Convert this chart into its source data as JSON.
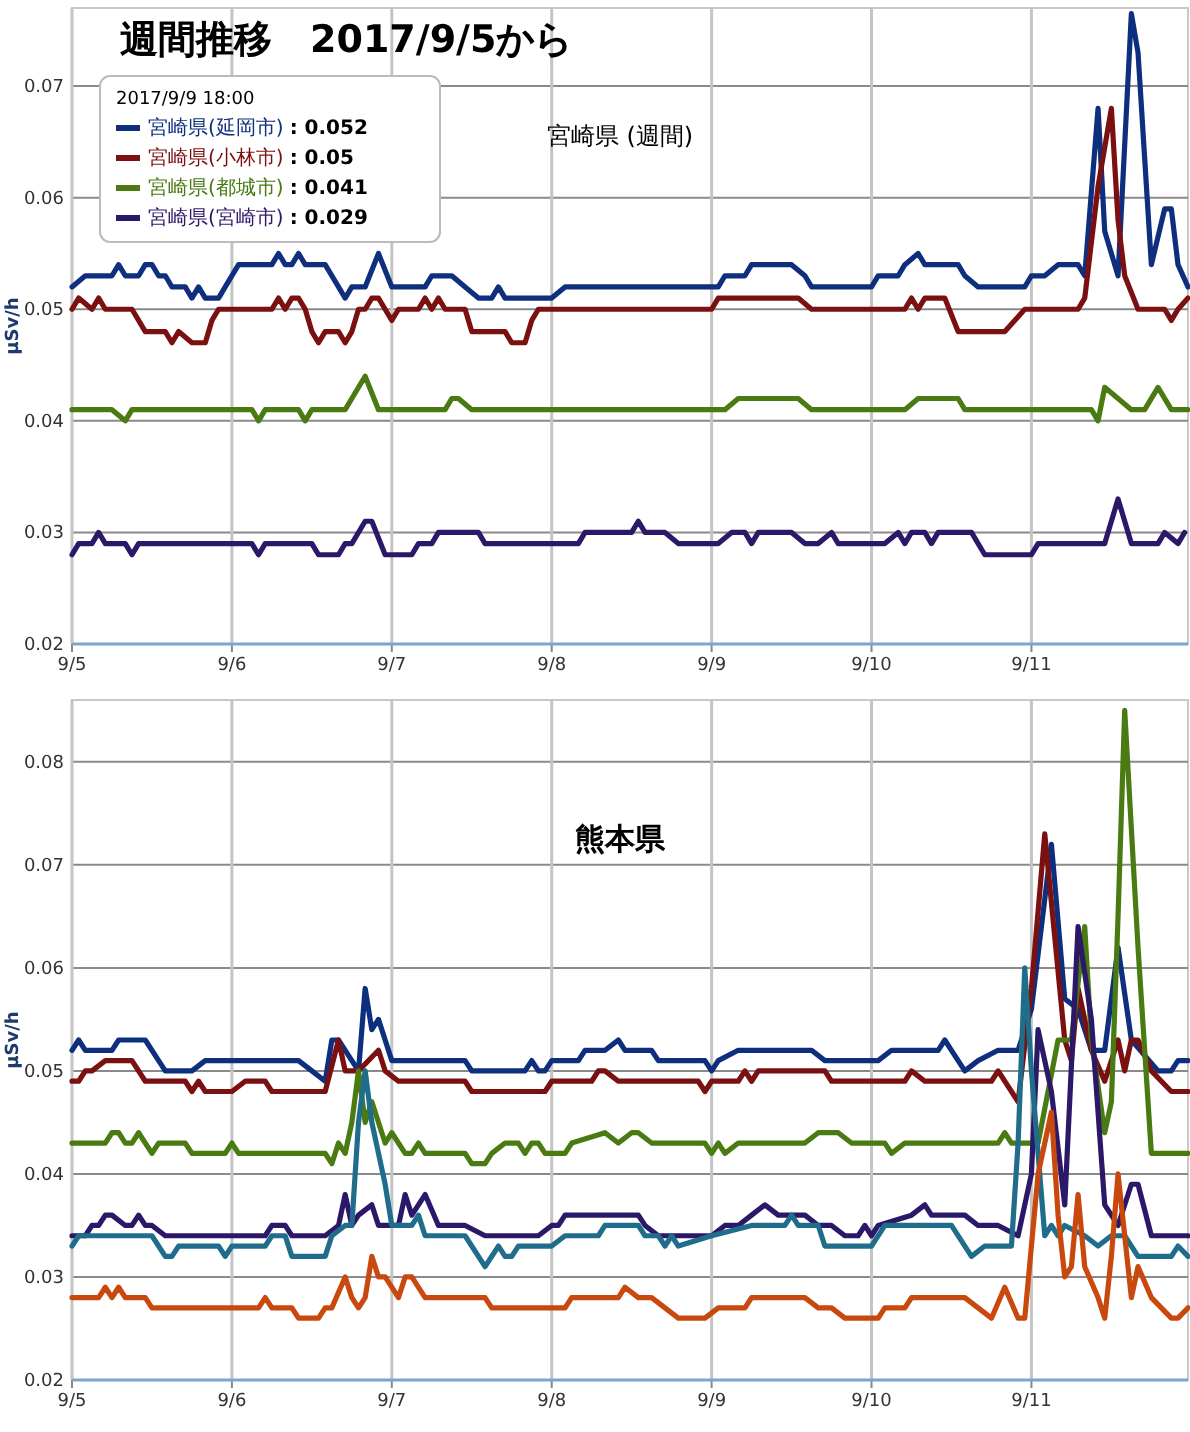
{
  "chart_data": [
    {
      "type": "line",
      "title": "週間推移　2017/9/5から",
      "subtitle": "宮崎県 (週間)",
      "ylabel": "μSv/h",
      "annotations": [
        "2017/9/9 18:00",
        ": 0.052",
        ": 0.05",
        ": 0.041",
        ": 0.029"
      ],
      "xlim": [
        "2017-09-05T00:00",
        "2017-09-11T23:30"
      ],
      "ylim": [
        0.02,
        0.077
      ],
      "xticks": [
        {
          "value": "2017-09-05",
          "label": "9/5"
        },
        {
          "value": "2017-09-06",
          "label": "9/6"
        },
        {
          "value": "2017-09-07",
          "label": "9/7"
        },
        {
          "value": "2017-09-08",
          "label": "9/8"
        },
        {
          "value": "2017-09-09",
          "label": "9/9"
        },
        {
          "value": "2017-09-10",
          "label": "9/10"
        },
        {
          "value": "2017-09-11",
          "label": "9/11"
        }
      ],
      "yticks": [
        0.02,
        0.03,
        0.04,
        0.05,
        0.06,
        0.07
      ],
      "grid": true,
      "legend": "top left",
      "series": [
        {
          "name": "宮崎県(延岡市)",
          "color": "#0e2f7e",
          "x": [
            "2017-09-05T00:00",
            "2017-09-05T02:00",
            "2017-09-05T06:00",
            "2017-09-05T07:00",
            "2017-09-05T08:00",
            "2017-09-05T10:00",
            "2017-09-05T11:00",
            "2017-09-05T12:00",
            "2017-09-05T13:00",
            "2017-09-05T14:00",
            "2017-09-05T15:00",
            "2017-09-05T17:00",
            "2017-09-05T18:00",
            "2017-09-05T19:00",
            "2017-09-05T20:00",
            "2017-09-05T22:00",
            "2017-09-05T23:00",
            "2017-09-06T01:00",
            "2017-09-06T06:00",
            "2017-09-06T07:00",
            "2017-09-06T08:00",
            "2017-09-06T09:00",
            "2017-09-06T10:00",
            "2017-09-06T11:00",
            "2017-09-06T14:00",
            "2017-09-06T16:00",
            "2017-09-06T17:00",
            "2017-09-06T18:00",
            "2017-09-06T20:00",
            "2017-09-06T22:00",
            "2017-09-07T00:00",
            "2017-09-07T05:00",
            "2017-09-07T06:00",
            "2017-09-07T09:00",
            "2017-09-07T11:00",
            "2017-09-07T13:00",
            "2017-09-07T15:00",
            "2017-09-07T16:00",
            "2017-09-07T17:00",
            "2017-09-08T00:00",
            "2017-09-08T02:00",
            "2017-09-09T01:00",
            "2017-09-09T02:00",
            "2017-09-09T05:00",
            "2017-09-09T06:00",
            "2017-09-09T12:00",
            "2017-09-09T14:00",
            "2017-09-09T15:00",
            "2017-09-10T00:00",
            "2017-09-10T01:00",
            "2017-09-10T04:00",
            "2017-09-10T05:00",
            "2017-09-10T07:00",
            "2017-09-10T08:00",
            "2017-09-10T13:00",
            "2017-09-10T14:00",
            "2017-09-10T16:00",
            "2017-09-10T23:00",
            "2017-09-11T00:00",
            "2017-09-11T02:00",
            "2017-09-11T04:00",
            "2017-09-11T07:00",
            "2017-09-11T08:00",
            "2017-09-11T10:00",
            "2017-09-11T11:00",
            "2017-09-11T13:00",
            "2017-09-11T15:00",
            "2017-09-11T16:00",
            "2017-09-11T18:00",
            "2017-09-11T20:00",
            "2017-09-11T21:00",
            "2017-09-11T22:00",
            "2017-09-11T23:30"
          ],
          "values": [
            0.052,
            0.053,
            0.053,
            0.054,
            0.053,
            0.053,
            0.054,
            0.054,
            0.053,
            0.053,
            0.052,
            0.052,
            0.051,
            0.052,
            0.051,
            0.051,
            0.052,
            0.054,
            0.054,
            0.055,
            0.054,
            0.054,
            0.055,
            0.054,
            0.054,
            0.052,
            0.051,
            0.052,
            0.052,
            0.055,
            0.052,
            0.052,
            0.053,
            0.053,
            0.052,
            0.051,
            0.051,
            0.052,
            0.051,
            0.051,
            0.052,
            0.052,
            0.053,
            0.053,
            0.054,
            0.054,
            0.053,
            0.052,
            0.052,
            0.053,
            0.053,
            0.054,
            0.055,
            0.054,
            0.054,
            0.053,
            0.052,
            0.052,
            0.053,
            0.053,
            0.054,
            0.054,
            0.053,
            0.068,
            0.057,
            0.053,
            0.0765,
            0.073,
            0.054,
            0.059,
            0.059,
            0.054,
            0.052
          ]
        },
        {
          "name": "宮崎県(小林市)",
          "color": "#7a1010",
          "x": [
            "2017-09-05T00:00",
            "2017-09-05T01:00",
            "2017-09-05T03:00",
            "2017-09-05T04:00",
            "2017-09-05T05:00",
            "2017-09-05T09:00",
            "2017-09-05T10:00",
            "2017-09-05T11:00",
            "2017-09-05T14:00",
            "2017-09-05T15:00",
            "2017-09-05T16:00",
            "2017-09-05T18:00",
            "2017-09-05T20:00",
            "2017-09-05T21:00",
            "2017-09-05T22:00",
            "2017-09-06T06:00",
            "2017-09-06T07:00",
            "2017-09-06T08:00",
            "2017-09-06T09:00",
            "2017-09-06T10:00",
            "2017-09-06T11:00",
            "2017-09-06T12:00",
            "2017-09-06T13:00",
            "2017-09-06T14:00",
            "2017-09-06T16:00",
            "2017-09-06T17:00",
            "2017-09-06T18:00",
            "2017-09-06T19:00",
            "2017-09-06T20:00",
            "2017-09-06T21:00",
            "2017-09-06T22:00",
            "2017-09-06T23:00",
            "2017-09-07T00:00",
            "2017-09-07T01:00",
            "2017-09-07T04:00",
            "2017-09-07T05:00",
            "2017-09-07T06:00",
            "2017-09-07T07:00",
            "2017-09-07T08:00",
            "2017-09-07T11:00",
            "2017-09-07T12:00",
            "2017-09-07T17:00",
            "2017-09-07T18:00",
            "2017-09-07T20:00",
            "2017-09-07T21:00",
            "2017-09-07T22:00",
            "2017-09-09T00:00",
            "2017-09-09T01:00",
            "2017-09-09T13:00",
            "2017-09-09T15:00",
            "2017-09-10T05:00",
            "2017-09-10T06:00",
            "2017-09-10T07:00",
            "2017-09-10T08:00",
            "2017-09-10T11:00",
            "2017-09-10T13:00",
            "2017-09-10T20:00",
            "2017-09-10T23:00",
            "2017-09-11T07:00",
            "2017-09-11T08:00",
            "2017-09-11T10:00",
            "2017-09-11T12:00",
            "2017-09-11T13:00",
            "2017-09-11T14:00",
            "2017-09-11T16:00",
            "2017-09-11T20:00",
            "2017-09-11T21:00",
            "2017-09-11T22:00",
            "2017-09-11T23:30"
          ],
          "values": [
            0.05,
            0.051,
            0.05,
            0.051,
            0.05,
            0.05,
            0.049,
            0.048,
            0.048,
            0.047,
            0.048,
            0.047,
            0.047,
            0.049,
            0.05,
            0.05,
            0.051,
            0.05,
            0.051,
            0.051,
            0.05,
            0.048,
            0.047,
            0.048,
            0.048,
            0.047,
            0.048,
            0.05,
            0.05,
            0.051,
            0.051,
            0.05,
            0.049,
            0.05,
            0.05,
            0.051,
            0.05,
            0.051,
            0.05,
            0.05,
            0.048,
            0.048,
            0.047,
            0.047,
            0.049,
            0.05,
            0.05,
            0.051,
            0.051,
            0.05,
            0.05,
            0.051,
            0.05,
            0.051,
            0.051,
            0.048,
            0.048,
            0.05,
            0.05,
            0.051,
            0.061,
            0.068,
            0.058,
            0.053,
            0.05,
            0.05,
            0.049,
            0.05,
            0.051
          ]
        },
        {
          "name": "宮崎県(都城市)",
          "color": "#4a7a12",
          "x": [
            "2017-09-05T00:00",
            "2017-09-05T06:00",
            "2017-09-05T08:00",
            "2017-09-05T09:00",
            "2017-09-06T03:00",
            "2017-09-06T04:00",
            "2017-09-06T05:00",
            "2017-09-06T10:00",
            "2017-09-06T11:00",
            "2017-09-06T12:00",
            "2017-09-06T17:00",
            "2017-09-06T20:00",
            "2017-09-06T22:00",
            "2017-09-07T08:00",
            "2017-09-07T09:00",
            "2017-09-07T10:00",
            "2017-09-07T12:00",
            "2017-09-09T02:00",
            "2017-09-09T04:00",
            "2017-09-09T13:00",
            "2017-09-09T15:00",
            "2017-09-10T05:00",
            "2017-09-10T07:00",
            "2017-09-10T13:00",
            "2017-09-10T14:00",
            "2017-09-11T09:00",
            "2017-09-11T10:00",
            "2017-09-11T11:00",
            "2017-09-11T15:00",
            "2017-09-11T17:00",
            "2017-09-11T19:00",
            "2017-09-11T21:00",
            "2017-09-11T23:30"
          ],
          "values": [
            0.041,
            0.041,
            0.04,
            0.041,
            0.041,
            0.04,
            0.041,
            0.041,
            0.04,
            0.041,
            0.041,
            0.044,
            0.041,
            0.041,
            0.042,
            0.042,
            0.041,
            0.041,
            0.042,
            0.042,
            0.041,
            0.041,
            0.042,
            0.042,
            0.041,
            0.041,
            0.04,
            0.043,
            0.041,
            0.041,
            0.043,
            0.041,
            0.041
          ]
        },
        {
          "name": "宮崎県(宮崎市)",
          "color": "#2c1868",
          "x": [
            "2017-09-05T00:00",
            "2017-09-05T01:00",
            "2017-09-05T03:00",
            "2017-09-05T04:00",
            "2017-09-05T05:00",
            "2017-09-05T08:00",
            "2017-09-05T09:00",
            "2017-09-05T10:00",
            "2017-09-06T03:00",
            "2017-09-06T04:00",
            "2017-09-06T05:00",
            "2017-09-06T12:00",
            "2017-09-06T13:00",
            "2017-09-06T16:00",
            "2017-09-06T17:00",
            "2017-09-06T18:00",
            "2017-09-06T20:00",
            "2017-09-06T21:00",
            "2017-09-06T23:00",
            "2017-09-07T03:00",
            "2017-09-07T04:00",
            "2017-09-07T06:00",
            "2017-09-07T07:00",
            "2017-09-07T13:00",
            "2017-09-07T14:00",
            "2017-09-08T04:00",
            "2017-09-08T05:00",
            "2017-09-08T12:00",
            "2017-09-08T13:00",
            "2017-09-08T14:00",
            "2017-09-08T17:00",
            "2017-09-08T19:00",
            "2017-09-09T01:00",
            "2017-09-09T03:00",
            "2017-09-09T05:00",
            "2017-09-09T06:00",
            "2017-09-09T07:00",
            "2017-09-09T12:00",
            "2017-09-09T14:00",
            "2017-09-09T16:00",
            "2017-09-09T18:00",
            "2017-09-09T19:00",
            "2017-09-10T02:00",
            "2017-09-10T04:00",
            "2017-09-10T05:00",
            "2017-09-10T06:00",
            "2017-09-10T08:00",
            "2017-09-10T09:00",
            "2017-09-10T10:00",
            "2017-09-10T15:00",
            "2017-09-10T17:00",
            "2017-09-11T00:00",
            "2017-09-11T01:00",
            "2017-09-11T11:00",
            "2017-09-11T13:00",
            "2017-09-11T15:00",
            "2017-09-11T19:00",
            "2017-09-11T20:00",
            "2017-09-11T22:00",
            "2017-09-11T23:00"
          ],
          "values": [
            0.028,
            0.029,
            0.029,
            0.03,
            0.029,
            0.029,
            0.028,
            0.029,
            0.029,
            0.028,
            0.029,
            0.029,
            0.028,
            0.028,
            0.029,
            0.029,
            0.031,
            0.031,
            0.028,
            0.028,
            0.029,
            0.029,
            0.03,
            0.03,
            0.029,
            0.029,
            0.03,
            0.03,
            0.031,
            0.03,
            0.03,
            0.029,
            0.029,
            0.03,
            0.03,
            0.029,
            0.03,
            0.03,
            0.029,
            0.029,
            0.03,
            0.029,
            0.029,
            0.03,
            0.029,
            0.03,
            0.03,
            0.029,
            0.03,
            0.03,
            0.028,
            0.028,
            0.029,
            0.029,
            0.033,
            0.029,
            0.029,
            0.03,
            0.029,
            0.03
          ]
        }
      ]
    },
    {
      "type": "line",
      "title": "熊本県",
      "ylabel": "μSv/h",
      "xlim": [
        "2017-09-05T00:00",
        "2017-09-11T23:30"
      ],
      "ylim": [
        0.02,
        0.086
      ],
      "xticks": [
        {
          "value": "2017-09-05",
          "label": "9/5"
        },
        {
          "value": "2017-09-06",
          "label": "9/6"
        },
        {
          "value": "2017-09-07",
          "label": "9/7"
        },
        {
          "value": "2017-09-08",
          "label": "9/8"
        },
        {
          "value": "2017-09-09",
          "label": "9/9"
        },
        {
          "value": "2017-09-10",
          "label": "9/10"
        },
        {
          "value": "2017-09-11",
          "label": "9/11"
        }
      ],
      "yticks": [
        0.02,
        0.03,
        0.04,
        0.05,
        0.06,
        0.07,
        0.08
      ],
      "grid": true,
      "series": [
        {
          "color": "#0e2f7e",
          "x": [
            "2017-09-05T00:00",
            "2017-09-05T01:00",
            "2017-09-05T02:00",
            "2017-09-05T06:00",
            "2017-09-05T07:00",
            "2017-09-05T11:00",
            "2017-09-05T13:00",
            "2017-09-05T14:00",
            "2017-09-05T18:00",
            "2017-09-05T20:00",
            "2017-09-06T10:00",
            "2017-09-06T12:00",
            "2017-09-06T14:00",
            "2017-09-06T15:00",
            "2017-09-06T16:00",
            "2017-09-06T18:00",
            "2017-09-06T19:00",
            "2017-09-06T20:00",
            "2017-09-06T21:00",
            "2017-09-06T22:00",
            "2017-09-06T23:00",
            "2017-09-07T00:00",
            "2017-09-07T01:00",
            "2017-09-07T11:00",
            "2017-09-07T12:00",
            "2017-09-07T20:00",
            "2017-09-07T21:00",
            "2017-09-07T22:00",
            "2017-09-07T23:00",
            "2017-09-08T00:00",
            "2017-09-08T04:00",
            "2017-09-08T05:00",
            "2017-09-08T08:00",
            "2017-09-08T10:00",
            "2017-09-08T11:00",
            "2017-09-08T15:00",
            "2017-09-08T16:00",
            "2017-09-08T23:00",
            "2017-09-09T00:00",
            "2017-09-09T01:00",
            "2017-09-09T04:00",
            "2017-09-09T15:00",
            "2017-09-09T17:00",
            "2017-09-10T01:00",
            "2017-09-10T03:00",
            "2017-09-10T10:00",
            "2017-09-10T11:00",
            "2017-09-10T12:00",
            "2017-09-10T14:00",
            "2017-09-10T16:00",
            "2017-09-10T19:00",
            "2017-09-10T22:00",
            "2017-09-11T00:00",
            "2017-09-11T03:00",
            "2017-09-11T05:00",
            "2017-09-11T07:00",
            "2017-09-11T09:00",
            "2017-09-11T11:00",
            "2017-09-11T13:00",
            "2017-09-11T15:00",
            "2017-09-11T19:00",
            "2017-09-11T21:00",
            "2017-09-11T22:00",
            "2017-09-11T23:30"
          ],
          "values": [
            0.052,
            0.053,
            0.052,
            0.052,
            0.053,
            0.053,
            0.051,
            0.05,
            0.05,
            0.051,
            0.051,
            0.05,
            0.049,
            0.053,
            0.053,
            0.051,
            0.05,
            0.058,
            0.054,
            0.055,
            0.053,
            0.051,
            0.051,
            0.051,
            0.05,
            0.05,
            0.051,
            0.05,
            0.05,
            0.051,
            0.051,
            0.052,
            0.052,
            0.053,
            0.052,
            0.052,
            0.051,
            0.051,
            0.05,
            0.051,
            0.052,
            0.052,
            0.051,
            0.051,
            0.052,
            0.052,
            0.053,
            0.052,
            0.05,
            0.051,
            0.052,
            0.052,
            0.056,
            0.072,
            0.057,
            0.056,
            0.052,
            0.052,
            0.062,
            0.053,
            0.05,
            0.05,
            0.051,
            0.051
          ]
        },
        {
          "color": "#7a1010",
          "x": [
            "2017-09-05T00:00",
            "2017-09-05T01:00",
            "2017-09-05T02:00",
            "2017-09-05T03:00",
            "2017-09-05T05:00",
            "2017-09-05T09:00",
            "2017-09-05T11:00",
            "2017-09-05T17:00",
            "2017-09-05T18:00",
            "2017-09-05T19:00",
            "2017-09-05T20:00",
            "2017-09-06T00:00",
            "2017-09-06T02:00",
            "2017-09-06T05:00",
            "2017-09-06T06:00",
            "2017-09-06T14:00",
            "2017-09-06T16:00",
            "2017-09-06T17:00",
            "2017-09-06T18:00",
            "2017-09-06T19:00",
            "2017-09-06T22:00",
            "2017-09-06T23:00",
            "2017-09-07T01:00",
            "2017-09-07T11:00",
            "2017-09-07T12:00",
            "2017-09-07T23:00",
            "2017-09-08T00:00",
            "2017-09-08T06:00",
            "2017-09-08T07:00",
            "2017-09-08T08:00",
            "2017-09-08T10:00",
            "2017-09-08T22:00",
            "2017-09-08T23:00",
            "2017-09-09T00:00",
            "2017-09-09T04:00",
            "2017-09-09T05:00",
            "2017-09-09T06:00",
            "2017-09-09T07:00",
            "2017-09-09T17:00",
            "2017-09-09T18:00",
            "2017-09-10T05:00",
            "2017-09-10T06:00",
            "2017-09-10T08:00",
            "2017-09-10T18:00",
            "2017-09-10T19:00",
            "2017-09-10T22:00",
            "2017-09-11T00:00",
            "2017-09-11T02:00",
            "2017-09-11T05:00",
            "2017-09-11T06:00",
            "2017-09-11T07:00",
            "2017-09-11T09:00",
            "2017-09-11T11:00",
            "2017-09-11T13:00",
            "2017-09-11T14:00",
            "2017-09-11T15:00",
            "2017-09-11T16:00",
            "2017-09-11T18:00",
            "2017-09-11T21:00",
            "2017-09-11T23:30"
          ],
          "values": [
            0.049,
            0.049,
            0.05,
            0.05,
            0.051,
            0.051,
            0.049,
            0.049,
            0.048,
            0.049,
            0.048,
            0.048,
            0.049,
            0.049,
            0.048,
            0.048,
            0.053,
            0.05,
            0.05,
            0.05,
            0.052,
            0.05,
            0.049,
            0.049,
            0.048,
            0.048,
            0.049,
            0.049,
            0.05,
            0.05,
            0.049,
            0.049,
            0.048,
            0.049,
            0.049,
            0.05,
            0.049,
            0.05,
            0.05,
            0.049,
            0.049,
            0.05,
            0.049,
            0.049,
            0.05,
            0.047,
            0.058,
            0.073,
            0.053,
            0.051,
            0.058,
            0.052,
            0.049,
            0.053,
            0.05,
            0.053,
            0.053,
            0.05,
            0.048,
            0.048
          ]
        },
        {
          "color": "#4a7a12",
          "x": [
            "2017-09-05T00:00",
            "2017-09-05T05:00",
            "2017-09-05T06:00",
            "2017-09-05T07:00",
            "2017-09-05T08:00",
            "2017-09-05T09:00",
            "2017-09-05T10:00",
            "2017-09-05T12:00",
            "2017-09-05T13:00",
            "2017-09-05T17:00",
            "2017-09-05T18:00",
            "2017-09-05T23:00",
            "2017-09-06T00:00",
            "2017-09-06T01:00",
            "2017-09-06T14:00",
            "2017-09-06T15:00",
            "2017-09-06T16:00",
            "2017-09-06T17:00",
            "2017-09-06T18:00",
            "2017-09-06T19:00",
            "2017-09-06T20:00",
            "2017-09-06T21:00",
            "2017-09-06T23:00",
            "2017-09-07T00:00",
            "2017-09-07T02:00",
            "2017-09-07T03:00",
            "2017-09-07T04:00",
            "2017-09-07T05:00",
            "2017-09-07T11:00",
            "2017-09-07T12:00",
            "2017-09-07T14:00",
            "2017-09-07T15:00",
            "2017-09-07T17:00",
            "2017-09-07T19:00",
            "2017-09-07T20:00",
            "2017-09-07T21:00",
            "2017-09-07T22:00",
            "2017-09-07T23:00",
            "2017-09-08T02:00",
            "2017-09-08T03:00",
            "2017-09-08T08:00",
            "2017-09-08T10:00",
            "2017-09-08T12:00",
            "2017-09-08T13:00",
            "2017-09-08T15:00",
            "2017-09-08T23:00",
            "2017-09-09T00:00",
            "2017-09-09T01:00",
            "2017-09-09T02:00",
            "2017-09-09T04:00",
            "2017-09-09T14:00",
            "2017-09-09T16:00",
            "2017-09-09T19:00",
            "2017-09-09T21:00",
            "2017-09-10T02:00",
            "2017-09-10T03:00",
            "2017-09-10T05:00",
            "2017-09-10T19:00",
            "2017-09-10T20:00",
            "2017-09-10T21:00",
            "2017-09-11T01:00",
            "2017-09-11T04:00",
            "2017-09-11T06:00",
            "2017-09-11T08:00",
            "2017-09-11T09:00",
            "2017-09-11T11:00",
            "2017-09-11T12:00",
            "2017-09-11T13:00",
            "2017-09-11T14:00",
            "2017-09-11T16:00",
            "2017-09-11T18:00",
            "2017-09-11T23:30"
          ],
          "values": [
            0.043,
            0.043,
            0.044,
            0.044,
            0.043,
            0.043,
            0.044,
            0.042,
            0.043,
            0.043,
            0.042,
            0.042,
            0.043,
            0.042,
            0.042,
            0.041,
            0.043,
            0.042,
            0.045,
            0.05,
            0.045,
            0.047,
            0.043,
            0.044,
            0.042,
            0.042,
            0.043,
            0.042,
            0.042,
            0.041,
            0.041,
            0.042,
            0.043,
            0.043,
            0.042,
            0.043,
            0.043,
            0.042,
            0.042,
            0.043,
            0.044,
            0.043,
            0.044,
            0.044,
            0.043,
            0.043,
            0.042,
            0.043,
            0.042,
            0.043,
            0.043,
            0.044,
            0.044,
            0.043,
            0.043,
            0.042,
            0.043,
            0.043,
            0.044,
            0.043,
            0.043,
            0.053,
            0.053,
            0.064,
            0.053,
            0.044,
            0.047,
            0.065,
            0.085,
            0.062,
            0.042,
            0.042
          ]
        },
        {
          "color": "#2c1868",
          "x": [
            "2017-09-05T00:00",
            "2017-09-05T02:00",
            "2017-09-05T03:00",
            "2017-09-05T04:00",
            "2017-09-05T05:00",
            "2017-09-05T06:00",
            "2017-09-05T08:00",
            "2017-09-05T09:00",
            "2017-09-05T10:00",
            "2017-09-05T11:00",
            "2017-09-05T12:00",
            "2017-09-05T14:00",
            "2017-09-06T05:00",
            "2017-09-06T06:00",
            "2017-09-06T08:00",
            "2017-09-06T09:00",
            "2017-09-06T14:00",
            "2017-09-06T16:00",
            "2017-09-06T17:00",
            "2017-09-06T18:00",
            "2017-09-06T19:00",
            "2017-09-06T21:00",
            "2017-09-06T22:00",
            "2017-09-07T01:00",
            "2017-09-07T02:00",
            "2017-09-07T03:00",
            "2017-09-07T05:00",
            "2017-09-07T07:00",
            "2017-09-07T11:00",
            "2017-09-07T14:00",
            "2017-09-07T22:00",
            "2017-09-08T00:00",
            "2017-09-08T01:00",
            "2017-09-08T02:00",
            "2017-09-08T13:00",
            "2017-09-08T14:00",
            "2017-09-08T16:00",
            "2017-09-09T00:00",
            "2017-09-09T02:00",
            "2017-09-09T04:00",
            "2017-09-09T06:00",
            "2017-09-09T08:00",
            "2017-09-09T10:00",
            "2017-09-09T14:00",
            "2017-09-09T16:00",
            "2017-09-09T18:00",
            "2017-09-09T20:00",
            "2017-09-09T22:00",
            "2017-09-09T23:00",
            "2017-09-10T00:00",
            "2017-09-10T01:00",
            "2017-09-10T06:00",
            "2017-09-10T08:00",
            "2017-09-10T09:00",
            "2017-09-10T14:00",
            "2017-09-10T16:00",
            "2017-09-10T19:00",
            "2017-09-10T22:00",
            "2017-09-11T00:00",
            "2017-09-11T01:00",
            "2017-09-11T03:00",
            "2017-09-11T05:00",
            "2017-09-11T07:00",
            "2017-09-11T09:00",
            "2017-09-11T11:00",
            "2017-09-11T13:00",
            "2017-09-11T15:00",
            "2017-09-11T16:00",
            "2017-09-11T18:00",
            "2017-09-11T23:30"
          ],
          "values": [
            0.034,
            0.034,
            0.035,
            0.035,
            0.036,
            0.036,
            0.035,
            0.035,
            0.036,
            0.035,
            0.035,
            0.034,
            0.034,
            0.035,
            0.035,
            0.034,
            0.034,
            0.035,
            0.038,
            0.035,
            0.036,
            0.037,
            0.035,
            0.035,
            0.038,
            0.036,
            0.038,
            0.035,
            0.035,
            0.034,
            0.034,
            0.035,
            0.035,
            0.036,
            0.036,
            0.035,
            0.034,
            0.034,
            0.035,
            0.035,
            0.036,
            0.037,
            0.036,
            0.036,
            0.035,
            0.035,
            0.034,
            0.034,
            0.035,
            0.034,
            0.035,
            0.036,
            0.037,
            0.036,
            0.036,
            0.035,
            0.035,
            0.034,
            0.04,
            0.054,
            0.048,
            0.037,
            0.064,
            0.055,
            0.037,
            0.035,
            0.039,
            0.039,
            0.034,
            0.034
          ]
        },
        {
          "color": "#1f6d8a",
          "x": [
            "2017-09-05T00:00",
            "2017-09-05T01:00",
            "2017-09-05T12:00",
            "2017-09-05T14:00",
            "2017-09-05T15:00",
            "2017-09-05T16:00",
            "2017-09-05T22:00",
            "2017-09-05T23:00",
            "2017-09-06T00:00",
            "2017-09-06T05:00",
            "2017-09-06T06:00",
            "2017-09-06T08:00",
            "2017-09-06T09:00",
            "2017-09-06T14:00",
            "2017-09-06T15:00",
            "2017-09-06T17:00",
            "2017-09-06T18:00",
            "2017-09-06T19:00",
            "2017-09-06T20:00",
            "2017-09-06T21:00",
            "2017-09-06T23:00",
            "2017-09-07T00:00",
            "2017-09-07T01:00",
            "2017-09-07T03:00",
            "2017-09-07T04:00",
            "2017-09-07T05:00",
            "2017-09-07T11:00",
            "2017-09-07T14:00",
            "2017-09-07T16:00",
            "2017-09-07T17:00",
            "2017-09-07T18:00",
            "2017-09-07T19:00",
            "2017-09-08T00:00",
            "2017-09-08T02:00",
            "2017-09-08T07:00",
            "2017-09-08T08:00",
            "2017-09-08T13:00",
            "2017-09-08T14:00",
            "2017-09-08T16:00",
            "2017-09-08T17:00",
            "2017-09-08T18:00",
            "2017-09-08T19:00",
            "2017-09-09T00:00",
            "2017-09-09T06:00",
            "2017-09-09T11:00",
            "2017-09-09T12:00",
            "2017-09-09T13:00",
            "2017-09-09T16:00",
            "2017-09-09T17:00",
            "2017-09-10T00:00",
            "2017-09-10T02:00",
            "2017-09-10T12:00",
            "2017-09-10T15:00",
            "2017-09-10T17:00",
            "2017-09-10T21:00",
            "2017-09-10T22:00",
            "2017-09-10T23:00",
            "2017-09-11T00:00",
            "2017-09-11T02:00",
            "2017-09-11T03:00",
            "2017-09-11T04:00",
            "2017-09-11T05:00",
            "2017-09-11T08:00",
            "2017-09-11T10:00",
            "2017-09-11T12:00",
            "2017-09-11T14:00",
            "2017-09-11T16:00",
            "2017-09-11T21:00",
            "2017-09-11T22:00",
            "2017-09-11T23:30"
          ],
          "values": [
            0.033,
            0.034,
            0.034,
            0.032,
            0.032,
            0.033,
            0.033,
            0.032,
            0.033,
            0.033,
            0.034,
            0.034,
            0.032,
            0.032,
            0.034,
            0.035,
            0.035,
            0.045,
            0.05,
            0.045,
            0.039,
            0.035,
            0.035,
            0.035,
            0.036,
            0.034,
            0.034,
            0.031,
            0.033,
            0.032,
            0.032,
            0.033,
            0.033,
            0.034,
            0.034,
            0.035,
            0.035,
            0.034,
            0.034,
            0.033,
            0.034,
            0.033,
            0.034,
            0.035,
            0.035,
            0.036,
            0.035,
            0.035,
            0.033,
            0.033,
            0.035,
            0.035,
            0.032,
            0.033,
            0.033,
            0.043,
            0.06,
            0.05,
            0.034,
            0.035,
            0.034,
            0.035,
            0.034,
            0.033,
            0.034,
            0.034,
            0.032,
            0.032,
            0.033,
            0.032
          ]
        },
        {
          "color": "#c8480e",
          "x": [
            "2017-09-05T00:00",
            "2017-09-05T04:00",
            "2017-09-05T05:00",
            "2017-09-05T06:00",
            "2017-09-05T07:00",
            "2017-09-05T08:00",
            "2017-09-05T11:00",
            "2017-09-05T12:00",
            "2017-09-06T04:00",
            "2017-09-06T05:00",
            "2017-09-06T06:00",
            "2017-09-06T09:00",
            "2017-09-06T10:00",
            "2017-09-06T13:00",
            "2017-09-06T14:00",
            "2017-09-06T15:00",
            "2017-09-06T17:00",
            "2017-09-06T18:00",
            "2017-09-06T19:00",
            "2017-09-06T20:00",
            "2017-09-06T21:00",
            "2017-09-06T22:00",
            "2017-09-06T23:00",
            "2017-09-07T01:00",
            "2017-09-07T02:00",
            "2017-09-07T03:00",
            "2017-09-07T05:00",
            "2017-09-07T14:00",
            "2017-09-07T15:00",
            "2017-09-08T02:00",
            "2017-09-08T03:00",
            "2017-09-08T10:00",
            "2017-09-08T11:00",
            "2017-09-08T13:00",
            "2017-09-08T15:00",
            "2017-09-08T17:00",
            "2017-09-08T19:00",
            "2017-09-08T23:00",
            "2017-09-09T01:00",
            "2017-09-09T05:00",
            "2017-09-09T06:00",
            "2017-09-09T14:00",
            "2017-09-09T16:00",
            "2017-09-09T18:00",
            "2017-09-09T20:00",
            "2017-09-10T01:00",
            "2017-09-10T02:00",
            "2017-09-10T05:00",
            "2017-09-10T06:00",
            "2017-09-10T14:00",
            "2017-09-10T16:00",
            "2017-09-10T18:00",
            "2017-09-10T20:00",
            "2017-09-10T22:00",
            "2017-09-10T23:00",
            "2017-09-11T01:00",
            "2017-09-11T03:00",
            "2017-09-11T04:00",
            "2017-09-11T05:00",
            "2017-09-11T06:00",
            "2017-09-11T07:00",
            "2017-09-11T08:00",
            "2017-09-11T10:00",
            "2017-09-11T11:00",
            "2017-09-11T12:00",
            "2017-09-11T13:00",
            "2017-09-11T15:00",
            "2017-09-11T16:00",
            "2017-09-11T18:00",
            "2017-09-11T21:00",
            "2017-09-11T22:00",
            "2017-09-11T23:30"
          ],
          "values": [
            0.028,
            0.028,
            0.029,
            0.028,
            0.029,
            0.028,
            0.028,
            0.027,
            0.027,
            0.028,
            0.027,
            0.027,
            0.026,
            0.026,
            0.027,
            0.027,
            0.03,
            0.028,
            0.027,
            0.028,
            0.032,
            0.03,
            0.03,
            0.028,
            0.03,
            0.03,
            0.028,
            0.028,
            0.027,
            0.027,
            0.028,
            0.028,
            0.029,
            0.028,
            0.028,
            0.027,
            0.026,
            0.026,
            0.027,
            0.027,
            0.028,
            0.028,
            0.027,
            0.027,
            0.026,
            0.026,
            0.027,
            0.027,
            0.028,
            0.028,
            0.027,
            0.026,
            0.029,
            0.026,
            0.026,
            0.04,
            0.046,
            0.036,
            0.03,
            0.031,
            0.038,
            0.031,
            0.028,
            0.026,
            0.032,
            0.04,
            0.028,
            0.031,
            0.028,
            0.026,
            0.026,
            0.027
          ]
        }
      ]
    }
  ]
}
